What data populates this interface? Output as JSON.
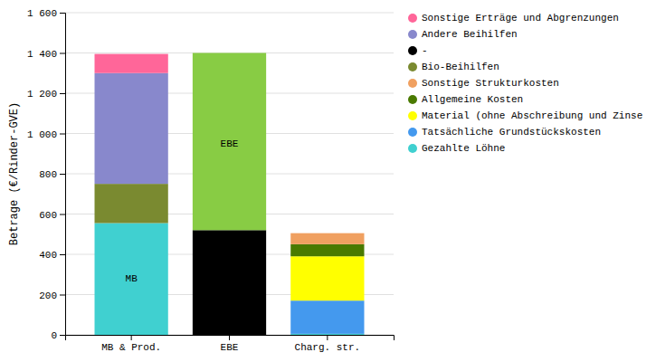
{
  "chart_data": {
    "type": "bar",
    "stacked": true,
    "categories": [
      "MB & Prod.",
      "EBE",
      "Charg. str."
    ],
    "series": [
      {
        "name": "Gezahlte Löhne",
        "color": "#40D0D0",
        "values": [
          555,
          0,
          5
        ]
      },
      {
        "name": "Tatsächliche Grundstückskosten",
        "color": "#4499EE",
        "values": [
          0,
          0,
          165
        ]
      },
      {
        "name": "Material (ohne Abschreibung und Zinse",
        "color": "#FFFF00",
        "values": [
          0,
          0,
          220
        ]
      },
      {
        "name": "Allgemeine Kosten",
        "color": "#4A7A00",
        "values": [
          0,
          0,
          60
        ]
      },
      {
        "name": "Sonstige Strukturkosten",
        "color": "#F0A060",
        "values": [
          0,
          0,
          55
        ]
      },
      {
        "name": "Bio-Beihilfen",
        "color": "#7A8A30",
        "values": [
          195,
          0,
          0
        ]
      },
      {
        "name": "-",
        "color": "#000000",
        "values": [
          0,
          520,
          0
        ]
      },
      {
        "name": "Andere Beihilfen",
        "color": "#8888CC",
        "values": [
          550,
          0,
          0
        ]
      },
      {
        "color": "#88CC44",
        "values": [
          0,
          880,
          0
        ]
      },
      {
        "name": "Sonstige Erträge und Abgrenzungen",
        "color": "#FF6699",
        "values": [
          95,
          0,
          0
        ]
      }
    ],
    "annotations": [
      {
        "text": "MB",
        "x": "MB & Prod.",
        "y": 280
      },
      {
        "text": "EBE",
        "x": "EBE",
        "y": 950
      }
    ],
    "ylabel": "Betrage (€/Rinder-GVE)",
    "ylim": [
      0,
      1600
    ],
    "yticks": [
      0,
      200,
      400,
      600,
      800,
      {
        "value": 1000,
        "label": "1 000"
      },
      {
        "value": 1200,
        "label": "1 200"
      },
      {
        "value": 1400,
        "label": "1 400"
      },
      {
        "value": 1600,
        "label": "1 600"
      }
    ],
    "grid": true,
    "legend": "right"
  }
}
